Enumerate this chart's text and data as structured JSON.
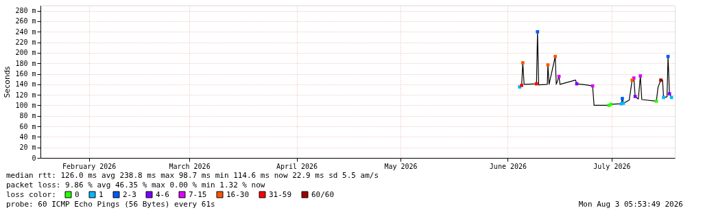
{
  "chart_data": {
    "type": "line",
    "ylabel": "Seconds",
    "xlim": [
      "2026-02-01T00:00",
      "2026-08-03T06:00"
    ],
    "xticks": [
      {
        "value": "2026-02-15",
        "label": "February 2026"
      },
      {
        "value": "2026-03-16",
        "label": "March 2026"
      },
      {
        "value": "2026-04-16",
        "label": "April 2026"
      },
      {
        "value": "2026-05-16",
        "label": "May 2026"
      },
      {
        "value": "2026-06-16",
        "label": "June 2026"
      },
      {
        "value": "2026-07-16",
        "label": "July 2026"
      }
    ],
    "ylim": [
      0,
      290
    ],
    "yticks": [
      0,
      {
        "value": 20,
        "label": "20 m"
      },
      {
        "value": 40,
        "label": "40 m"
      },
      {
        "value": 60,
        "label": "60 m"
      },
      {
        "value": 80,
        "label": "80 m"
      },
      {
        "value": 100,
        "label": "100 m"
      },
      {
        "value": 120,
        "label": "120 m"
      },
      {
        "value": 140,
        "label": "140 m"
      },
      {
        "value": 160,
        "label": "160 m"
      },
      {
        "value": 180,
        "label": "180 m"
      },
      {
        "value": 200,
        "label": "200 m"
      },
      {
        "value": 220,
        "label": "220 m"
      },
      {
        "value": 240,
        "label": "240 m"
      },
      {
        "value": 260,
        "label": "260 m"
      },
      {
        "value": 280,
        "label": "280 m"
      }
    ],
    "grid": true,
    "legend": "bottom",
    "legend_title": "loss color:",
    "line_style": "solid",
    "series": [
      {
        "color": "#000000",
        "x": [
          "2026-06-19T10:00",
          "2026-06-20T00:00",
          "2026-06-20T08:00",
          "2026-06-20T17:00",
          "2026-06-24T07:00",
          "2026-06-24T14:00",
          "2026-06-24T22:00",
          "2026-06-27T10:00",
          "2026-06-27T14:00",
          "2026-06-27T22:00",
          "2026-06-29T17:00",
          "2026-06-30T00:00",
          "2026-06-30T19:00",
          "2026-07-01T02:00",
          "2026-07-05T14:00",
          "2026-07-05T22:00",
          "2026-07-08T14:00",
          "2026-07-10T12:00",
          "2026-07-10T22:00",
          "2026-07-15T05:00",
          "2026-07-15T19:00",
          "2026-07-18T19:00",
          "2026-07-19T02:00",
          "2026-07-19T10:00",
          "2026-07-21T02:00",
          "2026-07-21T22:00",
          "2026-07-22T10:00",
          "2026-07-22T19:00",
          "2026-07-23T17:00",
          "2026-07-24T07:00",
          "2026-07-24T17:00",
          "2026-07-28T22:00",
          "2026-07-29T10:00",
          "2026-07-30T05:00",
          "2026-07-30T17:00",
          "2026-07-31T00:00",
          "2026-08-01T00:00",
          "2026-08-01T07:00",
          "2026-08-01T17:00",
          "2026-08-02T07:00"
        ],
        "values": [
          135,
          138,
          181,
          140,
          141,
          240,
          139,
          140,
          177,
          140,
          193,
          140,
          155,
          140,
          148,
          141,
          139,
          137,
          100,
          100,
          102,
          103,
          113,
          104,
          110,
          148,
          152,
          117,
          112,
          156,
          111,
          108,
          135,
          148,
          148,
          115,
          116,
          193,
          122,
          115
        ]
      },
      {
        "type": "scatter",
        "marker": "square",
        "name": "0",
        "color": "#26ff00",
        "x": [
          "2026-07-15T05:00",
          "2026-07-15T19:00",
          "2026-07-28T22:00"
        ],
        "values": [
          100,
          102,
          108
        ]
      },
      {
        "type": "scatter",
        "marker": "square",
        "name": "1",
        "color": "#00b8ff",
        "x": [
          "2026-06-19T10:00",
          "2026-07-18T19:00",
          "2026-07-19T10:00",
          "2026-07-31T00:00",
          "2026-08-02T07:00"
        ],
        "values": [
          135,
          103,
          104,
          115,
          115
        ]
      },
      {
        "type": "scatter",
        "marker": "square",
        "name": "2-3",
        "color": "#0059ff",
        "x": [
          "2026-06-24T14:00",
          "2026-07-19T02:00",
          "2026-08-01T07:00"
        ],
        "values": [
          240,
          113,
          193
        ]
      },
      {
        "type": "scatter",
        "marker": "square",
        "name": "4-6",
        "color": "#7e00ff",
        "x": [
          "2026-07-05T22:00",
          "2026-07-22T19:00",
          "2026-08-01T17:00"
        ],
        "values": [
          141,
          117,
          122
        ]
      },
      {
        "type": "scatter",
        "marker": "square",
        "name": "7-15",
        "color": "#dd00ff",
        "x": [
          "2026-06-30T19:00",
          "2026-07-10T12:00",
          "2026-07-22T10:00",
          "2026-07-24T07:00"
        ],
        "values": [
          155,
          137,
          152,
          156
        ]
      },
      {
        "type": "scatter",
        "marker": "square",
        "name": "16-30",
        "color": "#ff5500",
        "x": [
          "2026-06-20T08:00",
          "2026-06-27T14:00",
          "2026-06-29T17:00",
          "2026-07-21T22:00"
        ],
        "values": [
          181,
          177,
          193,
          148
        ]
      },
      {
        "type": "scatter",
        "marker": "square",
        "name": "31-59",
        "color": "#ff0000",
        "x": [
          "2026-06-20T00:00",
          "2026-06-24T07:00"
        ],
        "values": [
          138,
          141
        ]
      },
      {
        "type": "scatter",
        "marker": "square",
        "name": "60/60",
        "color": "#a10000",
        "x": [
          "2026-07-30T05:00"
        ],
        "values": [
          148
        ]
      }
    ],
    "annotations": [
      "median rtt:  126.0 ms avg  238.8 ms max  98.7 ms min  114.6 ms now  22.9 ms sd  5.5   am/s",
      "packet loss: 9.86 % avg  46.35 % max  0.00 % min  1.32 % now",
      "probe:       60 ICMP Echo Pings (56 Bytes) every 61s",
      "Mon Aug  3 05:53:49 2026"
    ]
  }
}
